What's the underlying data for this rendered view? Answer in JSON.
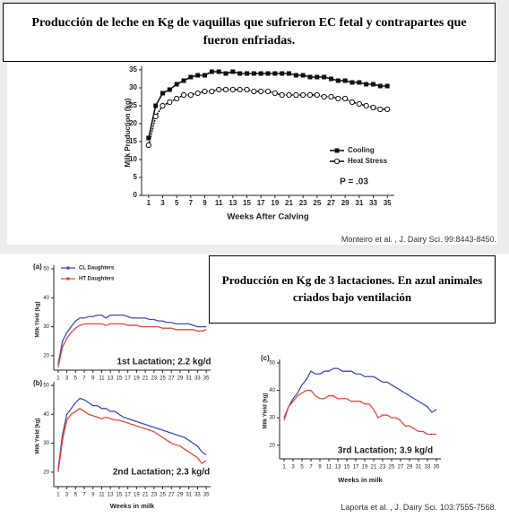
{
  "title_boxes": [
    "Producción de leche en Kg de vaquillas que sufrieron EC fetal y contrapartes que fueron enfriadas.",
    "Producción en Kg de 3 lactaciones. En azul animales criados bajo ventilación"
  ],
  "citations": [
    "Monteiro et al. , J. Dairy Sci. 99:8443-8450.",
    "Laporta et al. , J. Dairy Sci. 103:7555-7568."
  ],
  "chart_data": [
    {
      "type": "line",
      "xlabel": "Weeks After Calving",
      "ylabel": "Milk Production (kg)",
      "annotation": "P = .03",
      "legend": "lower right",
      "x": [
        1,
        2,
        3,
        4,
        5,
        6,
        7,
        8,
        9,
        10,
        11,
        12,
        13,
        14,
        15,
        16,
        17,
        18,
        19,
        20,
        21,
        22,
        23,
        24,
        25,
        26,
        27,
        28,
        29,
        30,
        31,
        32,
        33,
        34,
        35
      ],
      "xlim": [
        0,
        36
      ],
      "xticks": [
        1,
        3,
        5,
        7,
        9,
        11,
        13,
        15,
        17,
        19,
        21,
        23,
        25,
        27,
        29,
        31,
        33,
        35
      ],
      "ylim": [
        0,
        35
      ],
      "yticks": [
        0,
        5,
        10,
        15,
        20,
        25,
        30,
        35
      ],
      "series": [
        {
          "name": "Cooling",
          "color": "#111111",
          "marker": "square",
          "values": [
            16,
            25,
            28.5,
            29.5,
            31,
            32,
            33,
            33.5,
            33.5,
            34.5,
            34.5,
            34,
            34.5,
            34,
            34,
            34,
            34,
            34,
            34,
            34,
            34,
            33.5,
            33.5,
            33,
            33,
            33,
            32.5,
            32,
            32,
            31.5,
            31.5,
            31,
            31,
            30.5,
            30.5
          ]
        },
        {
          "name": "Heat Stress",
          "color": "#111111",
          "marker": "open-circle",
          "values": [
            14,
            22,
            25,
            26,
            27,
            28,
            28,
            28.5,
            29,
            29,
            29.5,
            29.5,
            29.5,
            29.5,
            29.5,
            29,
            29,
            29,
            28.5,
            28,
            28,
            28,
            28,
            28,
            28,
            27.5,
            27.5,
            27,
            27,
            26,
            25.5,
            25,
            24.5,
            24,
            24
          ]
        }
      ]
    },
    {
      "type": "line",
      "panel_label": "(a)",
      "ylabel": "Milk Yield (kg)",
      "annotation": "1st Lactation; 2.2 kg/d",
      "legend": "upper left",
      "x": [
        1,
        2,
        3,
        4,
        5,
        6,
        7,
        8,
        9,
        10,
        11,
        12,
        13,
        14,
        15,
        16,
        17,
        18,
        19,
        20,
        21,
        22,
        23,
        24,
        25,
        26,
        27,
        28,
        29,
        30,
        31,
        32,
        33,
        34,
        35
      ],
      "xlim": [
        0,
        36
      ],
      "xticks": [
        1,
        3,
        5,
        7,
        9,
        11,
        13,
        15,
        17,
        19,
        21,
        23,
        25,
        27,
        29,
        31,
        33,
        35
      ],
      "ylim": [
        15,
        50
      ],
      "yticks": [
        20,
        30,
        40,
        50
      ],
      "series": [
        {
          "name": "CL Daughters",
          "color": "#3b4fb3",
          "values": [
            17,
            25,
            28,
            30,
            32,
            33,
            33,
            33.5,
            33.5,
            34,
            34,
            33,
            34,
            34,
            34,
            34,
            33.5,
            33,
            33,
            33,
            33,
            32.5,
            32.5,
            32,
            32,
            31.5,
            31.5,
            31,
            31,
            31,
            31,
            30.5,
            30,
            30,
            30
          ]
        },
        {
          "name": "HT Daughters",
          "color": "#e0473a",
          "values": [
            16,
            23,
            26,
            28,
            29.5,
            30.5,
            31,
            31,
            31,
            31,
            31,
            30.5,
            31,
            31,
            31,
            31,
            30.5,
            30.5,
            30.5,
            30,
            30,
            30,
            30,
            30,
            29.5,
            29.5,
            29.5,
            29,
            29,
            29,
            29,
            29,
            28.5,
            28.5,
            29
          ]
        }
      ]
    },
    {
      "type": "line",
      "panel_label": "(b)",
      "ylabel": "Milk Yield (kg)",
      "xlabel": "Weeks in milk",
      "annotation": "2nd Lactation; 2.3 kg/d",
      "x": [
        1,
        2,
        3,
        4,
        5,
        6,
        7,
        8,
        9,
        10,
        11,
        12,
        13,
        14,
        15,
        16,
        17,
        18,
        19,
        20,
        21,
        22,
        23,
        24,
        25,
        26,
        27,
        28,
        29,
        30,
        31,
        32,
        33,
        34,
        35
      ],
      "xlim": [
        0,
        36
      ],
      "xticks": [
        1,
        3,
        5,
        7,
        9,
        11,
        13,
        15,
        17,
        19,
        21,
        23,
        25,
        27,
        29,
        31,
        33,
        35
      ],
      "ylim": [
        15,
        50
      ],
      "yticks": [
        20,
        30,
        40,
        50
      ],
      "series": [
        {
          "color": "#3b4fb3",
          "values": [
            21,
            33,
            40,
            42,
            44,
            45.5,
            45,
            44,
            43,
            43,
            42,
            42,
            41,
            41,
            40,
            39,
            38.5,
            38,
            37.5,
            37,
            36.5,
            36,
            35.5,
            35,
            34.5,
            34,
            33.5,
            33,
            32.5,
            32,
            31,
            30,
            29,
            27,
            26
          ]
        },
        {
          "color": "#e0473a",
          "values": [
            20,
            31,
            38,
            40,
            41,
            42,
            41,
            40,
            39.5,
            39,
            38.5,
            39,
            38.5,
            38,
            38,
            37.5,
            37,
            36.5,
            36,
            35.5,
            35,
            34.5,
            34,
            33,
            32,
            31,
            30,
            29.5,
            29,
            28,
            27,
            26,
            25,
            23,
            24
          ]
        }
      ]
    },
    {
      "type": "line",
      "panel_label": "(c)",
      "ylabel": "Milk Yield (kg)",
      "xlabel": "Weeks in milk",
      "annotation": "3rd Lactation; 3.9 kg/d",
      "x": [
        1,
        2,
        3,
        4,
        5,
        6,
        7,
        8,
        9,
        10,
        11,
        12,
        13,
        14,
        15,
        16,
        17,
        18,
        19,
        20,
        21,
        22,
        23,
        24,
        25,
        26,
        27,
        28,
        29,
        30,
        31,
        32,
        33,
        34,
        35
      ],
      "xlim": [
        0,
        36
      ],
      "xticks": [
        1,
        3,
        5,
        7,
        9,
        11,
        13,
        15,
        17,
        19,
        21,
        23,
        25,
        27,
        29,
        31,
        33,
        35
      ],
      "ylim": [
        15,
        50
      ],
      "yticks": [
        20,
        30,
        40,
        50
      ],
      "series": [
        {
          "color": "#3b4fb3",
          "values": [
            30,
            34,
            37,
            39,
            42,
            44,
            47,
            46,
            46,
            47,
            47,
            48,
            48,
            47,
            47,
            47,
            46,
            46,
            45,
            45,
            45,
            44,
            43,
            43,
            42,
            41,
            40,
            39,
            38,
            37,
            36,
            35,
            34,
            32,
            33
          ]
        },
        {
          "color": "#e0473a",
          "values": [
            29,
            34,
            36,
            38,
            39,
            40,
            40,
            38,
            37,
            37,
            38,
            38,
            37,
            37,
            37,
            36,
            36,
            36,
            35,
            35,
            33,
            30,
            31,
            31,
            30,
            30,
            29,
            27,
            27,
            26,
            25,
            25,
            24,
            24,
            24
          ]
        }
      ]
    }
  ]
}
